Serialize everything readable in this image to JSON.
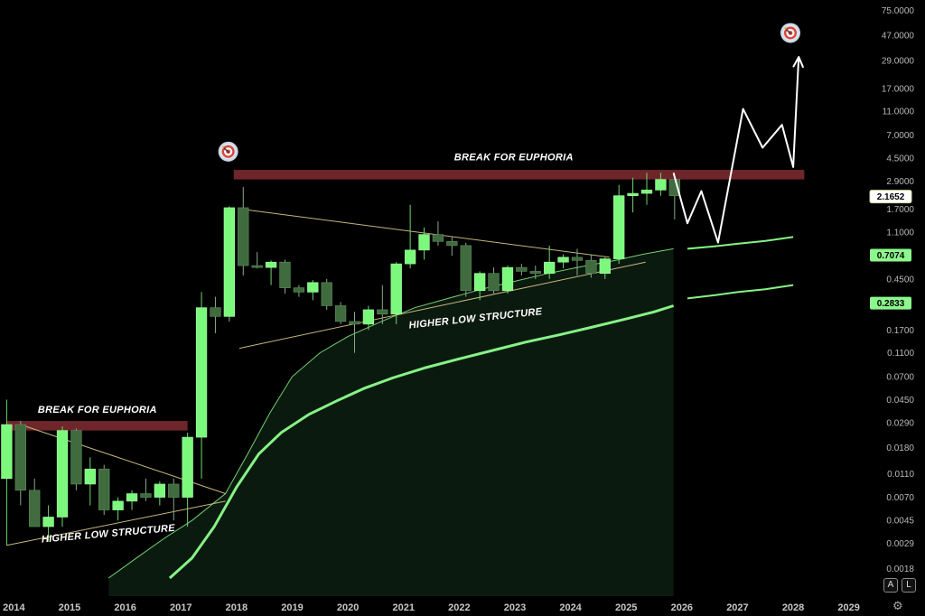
{
  "chart_data": {
    "type": "candlestick",
    "scale": "log",
    "ylim": [
      0.0015,
      80
    ],
    "xlim": [
      2013.75,
      2029.2
    ],
    "y_ticks": [
      "75.0000",
      "47.0000",
      "29.0000",
      "17.0000",
      "11.0000",
      "7.0000",
      "4.5000",
      "2.9000",
      "1.7000",
      "1.1000",
      "0.7074",
      "0.4500",
      "0.2833",
      "0.1700",
      "0.1100",
      "0.0700",
      "0.0450",
      "0.0290",
      "0.0180",
      "0.0110",
      "0.0070",
      "0.0045",
      "0.0029",
      "0.0018"
    ],
    "x_ticks": [
      "2014",
      "2015",
      "2016",
      "2017",
      "2018",
      "2019",
      "2020",
      "2021",
      "2022",
      "2023",
      "2024",
      "2025",
      "2026",
      "2027",
      "2028",
      "2029"
    ],
    "price_tags": [
      {
        "value": 2.1652,
        "label": "2.1652",
        "style": "white"
      },
      {
        "value": 0.7074,
        "label": "0.7074",
        "style": "green"
      },
      {
        "value": 0.2833,
        "label": "0.2833",
        "style": "green"
      }
    ],
    "candles": [
      {
        "t": 2013.62,
        "o": 0.006,
        "h": 0.012,
        "l": 0.0045,
        "c": 0.01
      },
      {
        "t": 2013.87,
        "o": 0.01,
        "h": 0.045,
        "l": 0.0028,
        "c": 0.028
      },
      {
        "t": 2014.12,
        "o": 0.028,
        "h": 0.03,
        "l": 0.006,
        "c": 0.008
      },
      {
        "t": 2014.37,
        "o": 0.008,
        "h": 0.01,
        "l": 0.004,
        "c": 0.004
      },
      {
        "t": 2014.62,
        "o": 0.004,
        "h": 0.006,
        "l": 0.003,
        "c": 0.0048
      },
      {
        "t": 2014.87,
        "o": 0.0048,
        "h": 0.027,
        "l": 0.004,
        "c": 0.025
      },
      {
        "t": 2015.12,
        "o": 0.025,
        "h": 0.026,
        "l": 0.008,
        "c": 0.009
      },
      {
        "t": 2015.37,
        "o": 0.009,
        "h": 0.015,
        "l": 0.006,
        "c": 0.012
      },
      {
        "t": 2015.62,
        "o": 0.012,
        "h": 0.013,
        "l": 0.005,
        "c": 0.0055
      },
      {
        "t": 2015.87,
        "o": 0.0055,
        "h": 0.007,
        "l": 0.0045,
        "c": 0.0065
      },
      {
        "t": 2016.12,
        "o": 0.0065,
        "h": 0.008,
        "l": 0.0055,
        "c": 0.0075
      },
      {
        "t": 2016.37,
        "o": 0.0075,
        "h": 0.01,
        "l": 0.0065,
        "c": 0.007
      },
      {
        "t": 2016.62,
        "o": 0.007,
        "h": 0.0095,
        "l": 0.006,
        "c": 0.009
      },
      {
        "t": 2016.87,
        "o": 0.009,
        "h": 0.01,
        "l": 0.0045,
        "c": 0.007
      },
      {
        "t": 2017.12,
        "o": 0.007,
        "h": 0.024,
        "l": 0.004,
        "c": 0.022
      },
      {
        "t": 2017.37,
        "o": 0.022,
        "h": 0.35,
        "l": 0.01,
        "c": 0.26
      },
      {
        "t": 2017.62,
        "o": 0.26,
        "h": 0.32,
        "l": 0.16,
        "c": 0.22
      },
      {
        "t": 2017.87,
        "o": 0.22,
        "h": 1.8,
        "l": 0.2,
        "c": 1.75
      },
      {
        "t": 2018.12,
        "o": 1.75,
        "h": 2.6,
        "l": 0.48,
        "c": 0.58
      },
      {
        "t": 2018.37,
        "o": 0.58,
        "h": 0.75,
        "l": 0.55,
        "c": 0.56
      },
      {
        "t": 2018.62,
        "o": 0.56,
        "h": 0.64,
        "l": 0.4,
        "c": 0.62
      },
      {
        "t": 2018.87,
        "o": 0.62,
        "h": 0.65,
        "l": 0.34,
        "c": 0.38
      },
      {
        "t": 2019.12,
        "o": 0.38,
        "h": 0.4,
        "l": 0.32,
        "c": 0.35
      },
      {
        "t": 2019.37,
        "o": 0.35,
        "h": 0.44,
        "l": 0.3,
        "c": 0.42
      },
      {
        "t": 2019.62,
        "o": 0.42,
        "h": 0.45,
        "l": 0.25,
        "c": 0.27
      },
      {
        "t": 2019.87,
        "o": 0.27,
        "h": 0.29,
        "l": 0.19,
        "c": 0.2
      },
      {
        "t": 2020.12,
        "o": 0.2,
        "h": 0.24,
        "l": 0.11,
        "c": 0.19
      },
      {
        "t": 2020.37,
        "o": 0.19,
        "h": 0.27,
        "l": 0.17,
        "c": 0.25
      },
      {
        "t": 2020.62,
        "o": 0.25,
        "h": 0.4,
        "l": 0.19,
        "c": 0.23
      },
      {
        "t": 2020.87,
        "o": 0.23,
        "h": 0.62,
        "l": 0.19,
        "c": 0.6
      },
      {
        "t": 2021.12,
        "o": 0.6,
        "h": 1.85,
        "l": 0.55,
        "c": 0.78
      },
      {
        "t": 2021.37,
        "o": 0.78,
        "h": 1.2,
        "l": 0.65,
        "c": 1.05
      },
      {
        "t": 2021.62,
        "o": 1.05,
        "h": 1.35,
        "l": 0.85,
        "c": 0.92
      },
      {
        "t": 2021.87,
        "o": 0.92,
        "h": 1.0,
        "l": 0.7,
        "c": 0.85
      },
      {
        "t": 2022.12,
        "o": 0.85,
        "h": 0.9,
        "l": 0.32,
        "c": 0.36
      },
      {
        "t": 2022.37,
        "o": 0.36,
        "h": 0.52,
        "l": 0.3,
        "c": 0.5
      },
      {
        "t": 2022.62,
        "o": 0.5,
        "h": 0.56,
        "l": 0.34,
        "c": 0.36
      },
      {
        "t": 2022.87,
        "o": 0.36,
        "h": 0.58,
        "l": 0.34,
        "c": 0.56
      },
      {
        "t": 2023.12,
        "o": 0.56,
        "h": 0.6,
        "l": 0.48,
        "c": 0.52
      },
      {
        "t": 2023.37,
        "o": 0.52,
        "h": 0.58,
        "l": 0.45,
        "c": 0.5
      },
      {
        "t": 2023.62,
        "o": 0.5,
        "h": 0.85,
        "l": 0.45,
        "c": 0.62
      },
      {
        "t": 2023.87,
        "o": 0.62,
        "h": 0.72,
        "l": 0.55,
        "c": 0.68
      },
      {
        "t": 2024.12,
        "o": 0.68,
        "h": 0.8,
        "l": 0.48,
        "c": 0.64
      },
      {
        "t": 2024.37,
        "o": 0.64,
        "h": 0.72,
        "l": 0.46,
        "c": 0.5
      },
      {
        "t": 2024.62,
        "o": 0.5,
        "h": 0.68,
        "l": 0.45,
        "c": 0.66
      },
      {
        "t": 2024.87,
        "o": 0.66,
        "h": 2.7,
        "l": 0.6,
        "c": 2.2
      },
      {
        "t": 2025.12,
        "o": 2.2,
        "h": 3.1,
        "l": 1.6,
        "c": 2.3
      },
      {
        "t": 2025.37,
        "o": 2.3,
        "h": 3.4,
        "l": 1.85,
        "c": 2.45
      },
      {
        "t": 2025.62,
        "o": 2.45,
        "h": 3.4,
        "l": 2.2,
        "c": 3.0
      },
      {
        "t": 2025.87,
        "o": 3.0,
        "h": 3.1,
        "l": 1.4,
        "c": 2.2
      }
    ],
    "annotations": [
      {
        "text": "BREAK FOR EUPHORIA",
        "t": 2015.5,
        "v": 0.035
      },
      {
        "text": "HIGHER LOW STRUCTURE",
        "t": 2015.7,
        "v": 0.0033,
        "angle": -5
      },
      {
        "text": "BREAK FOR EUPHORIA",
        "t": 2022.98,
        "v": 4.3
      },
      {
        "text": "HIGHER LOW STRUCTURE",
        "t": 2022.3,
        "v": 0.2,
        "angle": -6
      }
    ],
    "resistance_zones": [
      {
        "t0": 2013.87,
        "t1": 2017.12,
        "low": 0.025,
        "high": 0.03
      },
      {
        "t0": 2017.95,
        "t1": 2028.2,
        "low": 3.0,
        "high": 3.6
      }
    ],
    "trendlines": [
      {
        "series": "upper-2014",
        "points": [
          [
            2014.12,
            0.028
          ],
          [
            2017.8,
            0.0075
          ]
        ]
      },
      {
        "series": "lower-2014",
        "points": [
          [
            2013.87,
            0.0028
          ],
          [
            2017.8,
            0.0065
          ]
        ]
      },
      {
        "series": "upper-2018",
        "points": [
          [
            2018.1,
            1.7
          ],
          [
            2024.7,
            0.68
          ]
        ]
      },
      {
        "series": "lower-2018",
        "points": [
          [
            2018.05,
            0.12
          ],
          [
            2025.35,
            0.62
          ]
        ]
      }
    ],
    "bands": {
      "outer_lower": [
        [
          2015.7,
          0.0015
        ],
        [
          2016.2,
          0.0022
        ],
        [
          2016.7,
          0.0032
        ],
        [
          2017.2,
          0.0045
        ],
        [
          2017.8,
          0.0075
        ],
        [
          2018.2,
          0.016
        ],
        [
          2018.6,
          0.035
        ],
        [
          2019.0,
          0.07
        ],
        [
          2019.5,
          0.11
        ],
        [
          2020.0,
          0.15
        ],
        [
          2020.6,
          0.2
        ],
        [
          2021.2,
          0.26
        ],
        [
          2021.8,
          0.31
        ],
        [
          2022.4,
          0.37
        ],
        [
          2023.0,
          0.43
        ],
        [
          2023.6,
          0.5
        ],
        [
          2024.2,
          0.57
        ],
        [
          2024.8,
          0.64
        ],
        [
          2025.3,
          0.72
        ],
        [
          2025.85,
          0.8
        ]
      ],
      "inner_curve": [
        [
          2016.8,
          0.0015
        ],
        [
          2017.2,
          0.0022
        ],
        [
          2017.6,
          0.004
        ],
        [
          2018.0,
          0.0085
        ],
        [
          2018.4,
          0.016
        ],
        [
          2018.8,
          0.024
        ],
        [
          2019.3,
          0.034
        ],
        [
          2019.8,
          0.044
        ],
        [
          2020.3,
          0.056
        ],
        [
          2020.8,
          0.068
        ],
        [
          2021.4,
          0.083
        ],
        [
          2022.0,
          0.098
        ],
        [
          2022.6,
          0.115
        ],
        [
          2023.2,
          0.135
        ],
        [
          2023.8,
          0.155
        ],
        [
          2024.4,
          0.18
        ],
        [
          2025.0,
          0.21
        ],
        [
          2025.5,
          0.24
        ],
        [
          2025.85,
          0.27
        ]
      ],
      "projected_upper": [
        [
          2026.1,
          0.8
        ],
        [
          2026.6,
          0.84
        ],
        [
          2027.0,
          0.88
        ],
        [
          2027.5,
          0.93
        ],
        [
          2028.0,
          1.0
        ]
      ],
      "projected_lower": [
        [
          2026.1,
          0.31
        ],
        [
          2026.6,
          0.33
        ],
        [
          2027.0,
          0.35
        ],
        [
          2027.5,
          0.37
        ],
        [
          2028.0,
          0.4
        ]
      ]
    },
    "projection_path": [
      [
        2025.85,
        3.4
      ],
      [
        2026.1,
        1.3
      ],
      [
        2026.35,
        2.4
      ],
      [
        2026.65,
        0.9
      ],
      [
        2027.1,
        11.5
      ],
      [
        2027.45,
        5.5
      ],
      [
        2027.8,
        8.5
      ],
      [
        2028.0,
        3.8
      ],
      [
        2028.1,
        31.0
      ]
    ],
    "targets": [
      {
        "name": "target-2018",
        "t": 2017.85,
        "v": 5.1
      },
      {
        "name": "target-2028",
        "t": 2027.95,
        "v": 49
      }
    ]
  },
  "controls": {
    "log_label": "L",
    "auto_label": "A",
    "settings_icon": "gear-icon"
  },
  "colors": {
    "bull": "#7cf97c",
    "bear": "#3f6b3f",
    "zone": "#7a2a30",
    "trend": "#d9c98a",
    "band": "#86f386",
    "fill": "#0b1a0f",
    "tag_green": "#8df78d",
    "projection": "#ffffff"
  }
}
